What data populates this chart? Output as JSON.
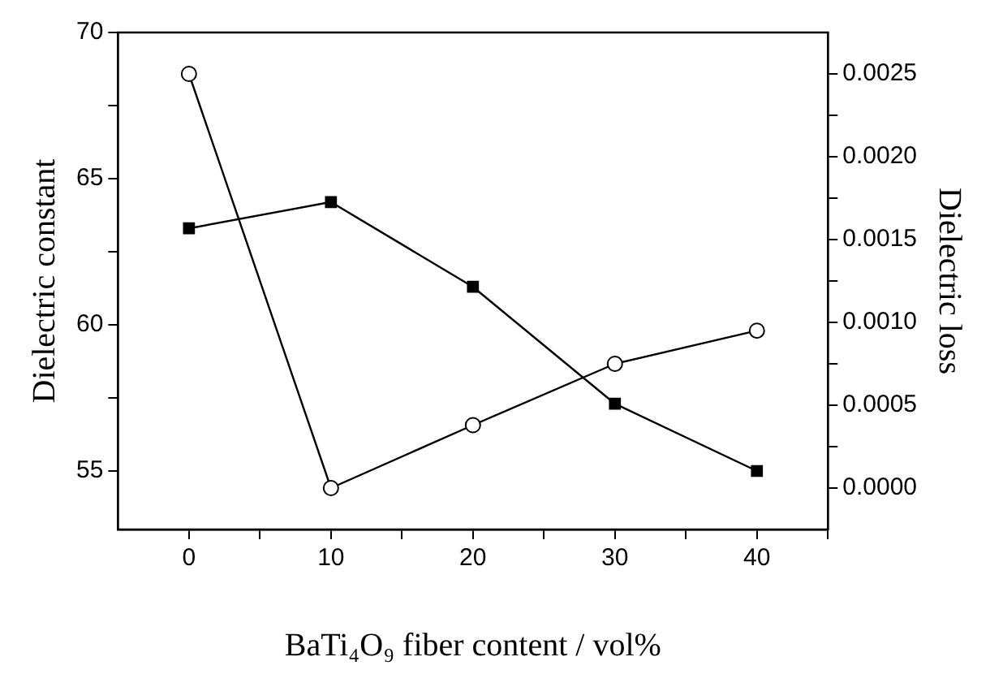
{
  "chart_data": {
    "type": "line",
    "xlabel": "BaTi₄O₉ fiber content / vol%",
    "ylabel": "Dielectric constant",
    "y2label": "Dielectric loss",
    "x": [
      0,
      10,
      20,
      30,
      40
    ],
    "series": [
      {
        "color": "#000000",
        "marker": "square",
        "values": [
          63.3,
          64.2,
          61.3,
          57.3,
          55.0
        ]
      },
      {
        "color": "#000000",
        "marker": "circle",
        "axis": "y2",
        "values": [
          0.0025,
          0.0,
          0.00038,
          0.00075,
          0.00095
        ]
      }
    ],
    "xlim": [
      -5,
      45
    ],
    "xticks": [
      0,
      {
        "value": 5,
        "label": null
      },
      10,
      {
        "value": 15,
        "label": null
      },
      20,
      {
        "value": 25,
        "label": null
      },
      30,
      {
        "value": 35,
        "label": null
      },
      40,
      {
        "value": 45,
        "label": null
      }
    ],
    "ylim": [
      53,
      70
    ],
    "yticks": [
      55,
      {
        "value": 57.5,
        "label": null
      },
      60,
      {
        "value": 62.5,
        "label": null
      },
      65,
      {
        "value": 67.5,
        "label": null
      },
      70
    ],
    "y2lim": [
      -0.00025,
      0.00275
    ],
    "y2ticks": [
      {
        "value": 0,
        "label": "0.0000"
      },
      {
        "value": 0.00025,
        "label": null
      },
      {
        "value": 0.0005,
        "label": "0.0005"
      },
      {
        "value": 0.00075,
        "label": null
      },
      {
        "value": 0.001,
        "label": "0.0010"
      },
      {
        "value": 0.00125,
        "label": null
      },
      {
        "value": 0.0015,
        "label": "0.0015"
      },
      {
        "value": 0.00175,
        "label": null
      },
      {
        "value": 0.002,
        "label": "0.0020"
      },
      {
        "value": 0.00225,
        "label": null
      },
      {
        "value": 0.0025,
        "label": "0.0025"
      }
    ],
    "grid": false,
    "legend": false
  }
}
